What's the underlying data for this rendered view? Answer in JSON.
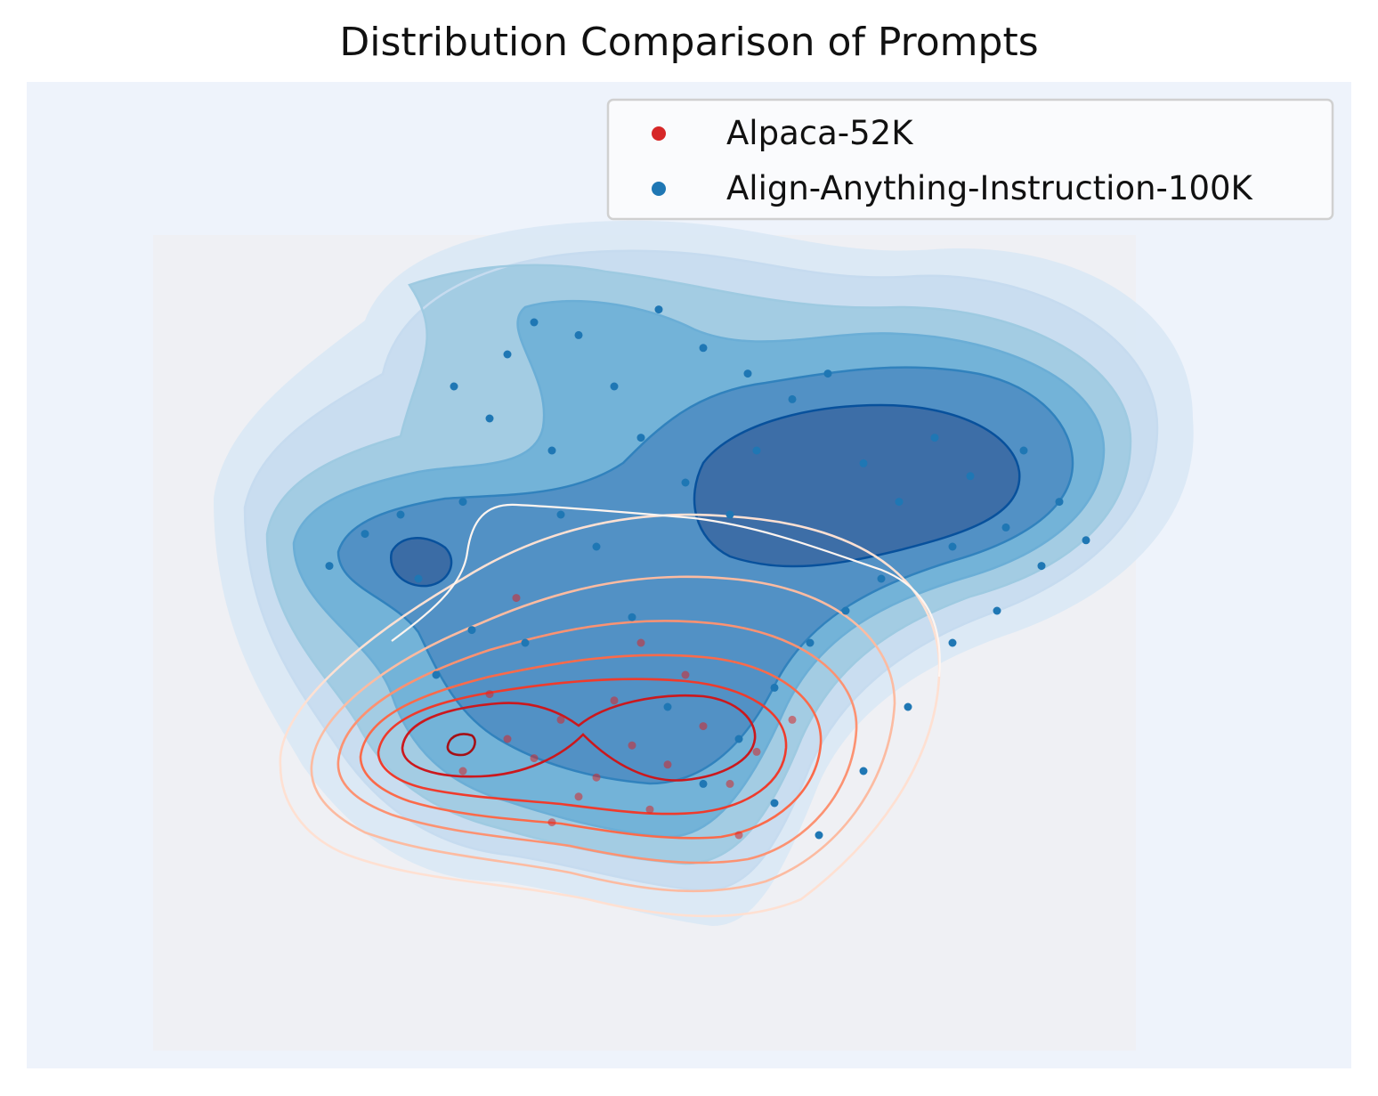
{
  "chart_data": {
    "type": "scatter",
    "title": "Distribution Comparison of Prompts",
    "xlabel": "",
    "ylabel": "",
    "axes_visible": false,
    "grid": false,
    "legend_position": "top-right",
    "series": [
      {
        "name": "Alpaca-52K",
        "color": "#d62728",
        "density_colormap": "Reds",
        "density_style": "contour lines",
        "density_center": [
          0.4,
          0.22
        ],
        "points": [
          [
            0.3,
            0.25
          ],
          [
            0.33,
            0.22
          ],
          [
            0.36,
            0.28
          ],
          [
            0.4,
            0.19
          ],
          [
            0.44,
            0.24
          ],
          [
            0.48,
            0.21
          ],
          [
            0.52,
            0.27
          ],
          [
            0.42,
            0.31
          ],
          [
            0.38,
            0.16
          ],
          [
            0.46,
            0.14
          ],
          [
            0.55,
            0.18
          ],
          [
            0.28,
            0.32
          ],
          [
            0.5,
            0.35
          ],
          [
            0.35,
            0.12
          ],
          [
            0.58,
            0.23
          ],
          [
            0.62,
            0.28
          ],
          [
            0.25,
            0.2
          ],
          [
            0.45,
            0.4
          ],
          [
            0.31,
            0.47
          ],
          [
            0.56,
            0.1
          ]
        ]
      },
      {
        "name": "Align-Anything-Instruction-100K",
        "color": "#1f77b4",
        "density_colormap": "Blues",
        "density_style": "filled contours",
        "density_center": [
          0.55,
          0.55
        ],
        "points": [
          [
            0.1,
            0.52
          ],
          [
            0.14,
            0.57
          ],
          [
            0.18,
            0.6
          ],
          [
            0.2,
            0.5
          ],
          [
            0.25,
            0.62
          ],
          [
            0.28,
            0.75
          ],
          [
            0.3,
            0.85
          ],
          [
            0.33,
            0.9
          ],
          [
            0.38,
            0.88
          ],
          [
            0.42,
            0.8
          ],
          [
            0.45,
            0.72
          ],
          [
            0.5,
            0.65
          ],
          [
            0.55,
            0.6
          ],
          [
            0.58,
            0.7
          ],
          [
            0.62,
            0.78
          ],
          [
            0.66,
            0.82
          ],
          [
            0.7,
            0.68
          ],
          [
            0.74,
            0.62
          ],
          [
            0.78,
            0.72
          ],
          [
            0.82,
            0.66
          ],
          [
            0.86,
            0.58
          ],
          [
            0.9,
            0.52
          ],
          [
            0.88,
            0.7
          ],
          [
            0.8,
            0.55
          ],
          [
            0.72,
            0.5
          ],
          [
            0.68,
            0.45
          ],
          [
            0.64,
            0.4
          ],
          [
            0.6,
            0.33
          ],
          [
            0.56,
            0.25
          ],
          [
            0.52,
            0.18
          ],
          [
            0.48,
            0.3
          ],
          [
            0.44,
            0.44
          ],
          [
            0.4,
            0.55
          ],
          [
            0.36,
            0.6
          ],
          [
            0.32,
            0.4
          ],
          [
            0.26,
            0.42
          ],
          [
            0.22,
            0.35
          ],
          [
            0.6,
            0.15
          ],
          [
            0.65,
            0.1
          ],
          [
            0.7,
            0.2
          ],
          [
            0.75,
            0.3
          ],
          [
            0.8,
            0.4
          ],
          [
            0.85,
            0.45
          ],
          [
            0.92,
            0.62
          ],
          [
            0.95,
            0.56
          ],
          [
            0.47,
            0.92
          ],
          [
            0.52,
            0.86
          ],
          [
            0.57,
            0.82
          ],
          [
            0.35,
            0.7
          ],
          [
            0.24,
            0.8
          ]
        ]
      }
    ]
  },
  "legend": {
    "item1_label": "Alpaca-52K",
    "item2_label": "Align-Anything-Instruction-100K"
  }
}
